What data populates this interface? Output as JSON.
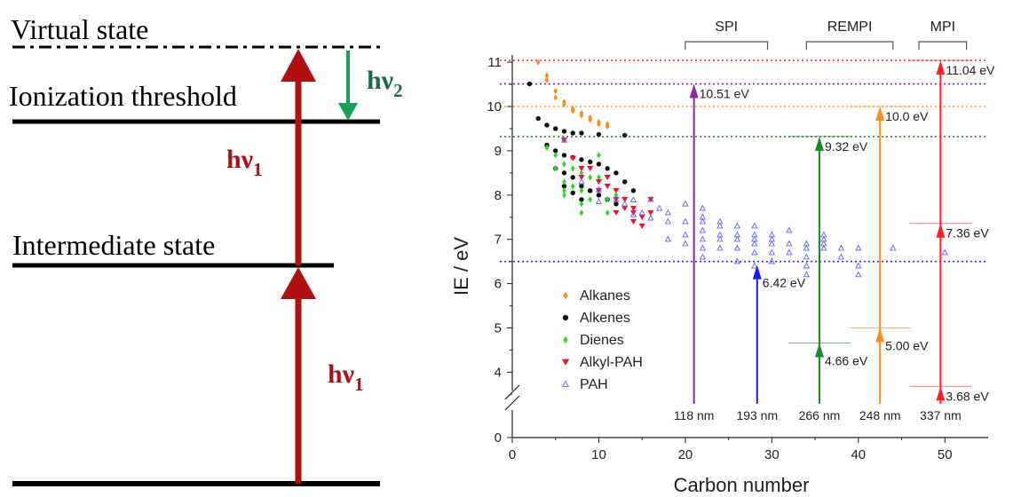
{
  "energy_diagram": {
    "virtual_state": "Virtual state",
    "ionization_threshold": "Ionization threshold",
    "intermediate_state": "Intermediate state",
    "hv1_upper": "hν",
    "hv1_upper_sub": "1",
    "hv1_lower": "hν",
    "hv1_lower_sub": "1",
    "hv2": "hν",
    "hv2_sub": "2",
    "colors": {
      "red": "#b01010",
      "green": "#1aa05a",
      "text_red": "#b01010",
      "text_green": "#1a6a50"
    }
  },
  "chart_data": {
    "type": "scatter",
    "xlabel": "Carbon number",
    "ylabel": "IE / eV",
    "xlim": [
      0,
      55
    ],
    "ylim_upper": [
      3.5,
      11.0
    ],
    "x_ticks": [
      0,
      10,
      20,
      30,
      40,
      50
    ],
    "y_ticks": [
      4,
      5,
      6,
      7,
      8,
      9,
      10,
      11
    ],
    "y_break_tick": 0,
    "method_brackets": [
      {
        "label": "SPI",
        "x_range": [
          20,
          29.5
        ]
      },
      {
        "label": "REMPI",
        "x_range": [
          34,
          44
        ]
      },
      {
        "label": "MPI",
        "x_range": [
          47,
          52.5
        ]
      }
    ],
    "reference_lines": [
      {
        "y": 11.04,
        "color": "#ff3030"
      },
      {
        "y": 10.51,
        "color": "#8a2aa0"
      },
      {
        "y": 10.0,
        "color": "#ff9a2a"
      },
      {
        "y": 9.32,
        "color": "#2a8a2a"
      },
      {
        "y": 6.5,
        "color": "#2a2aff"
      }
    ],
    "lasers": [
      {
        "wavelength": "118 nm",
        "x": 21,
        "color": "#8a2aa0",
        "steps": [
          10.51
        ],
        "labels": [
          "10.51 eV"
        ]
      },
      {
        "wavelength": "193 nm",
        "x": 28.3,
        "color": "#1a1aff",
        "steps": [
          6.42
        ],
        "labels": [
          "6.42 eV"
        ]
      },
      {
        "wavelength": "266 nm",
        "x": 35.5,
        "color": "#1a8a2a",
        "steps": [
          4.66,
          9.32
        ],
        "labels": [
          "4.66 eV",
          "9.32 eV"
        ]
      },
      {
        "wavelength": "248 nm",
        "x": 42.5,
        "color": "#ff8c1a",
        "steps": [
          5.0,
          10.0
        ],
        "labels": [
          "5.00 eV",
          "10.0 eV"
        ]
      },
      {
        "wavelength": "337 nm",
        "x": 49.5,
        "color": "#ff2020",
        "steps": [
          3.68,
          7.36,
          11.04
        ],
        "labels": [
          "3.68 eV",
          "7.36 eV",
          "11.04 eV"
        ]
      }
    ],
    "series": [
      {
        "name": "Alkanes",
        "marker": "diamond",
        "color": "#ff8c1a",
        "points": [
          [
            3,
            11
          ],
          [
            4,
            10.7
          ],
          [
            4,
            10.6
          ],
          [
            5,
            10.35
          ],
          [
            5,
            10.2
          ],
          [
            6,
            10.05
          ],
          [
            6,
            10.1
          ],
          [
            7,
            9.9
          ],
          [
            7,
            9.95
          ],
          [
            8,
            9.8
          ],
          [
            8,
            9.85
          ],
          [
            9,
            9.7
          ],
          [
            9,
            9.75
          ],
          [
            10,
            9.6
          ],
          [
            10,
            9.65
          ],
          [
            11,
            9.6
          ],
          [
            11,
            9.55
          ]
        ]
      },
      {
        "name": "Alkenes",
        "marker": "circle",
        "color": "#111111",
        "points": [
          [
            2,
            10.51
          ],
          [
            3,
            9.73
          ],
          [
            4,
            9.58
          ],
          [
            5,
            9.5
          ],
          [
            6,
            9.44
          ],
          [
            7,
            9.4
          ],
          [
            8,
            9.4
          ],
          [
            10,
            9.37
          ],
          [
            13,
            9.35
          ],
          [
            4,
            9.13
          ],
          [
            5,
            9.0
          ],
          [
            6,
            8.9
          ],
          [
            7,
            8.85
          ],
          [
            8,
            8.8
          ],
          [
            9,
            8.75
          ],
          [
            10,
            8.7
          ],
          [
            11,
            8.6
          ],
          [
            12,
            8.5
          ],
          [
            13,
            8.3
          ],
          [
            14,
            8.1
          ],
          [
            5,
            8.6
          ],
          [
            6,
            8.5
          ],
          [
            7,
            8.4
          ],
          [
            8,
            8.2
          ],
          [
            9,
            8.1
          ],
          [
            10,
            8.0
          ],
          [
            11,
            7.9
          ],
          [
            12,
            7.8
          ],
          [
            6,
            8.2
          ],
          [
            7,
            8.05
          ],
          [
            8,
            7.9
          ],
          [
            9,
            8.1
          ],
          [
            10,
            8.0
          ]
        ]
      },
      {
        "name": "Dienes",
        "marker": "diamond",
        "color": "#22dd22",
        "points": [
          [
            4,
            9.07
          ],
          [
            5,
            8.9
          ],
          [
            5,
            8.6
          ],
          [
            6,
            8.7
          ],
          [
            6,
            8.3
          ],
          [
            6,
            8.1
          ],
          [
            7,
            8.6
          ],
          [
            7,
            8.2
          ],
          [
            8,
            8.5
          ],
          [
            8,
            8.1
          ],
          [
            9,
            8.4
          ],
          [
            9,
            7.9
          ],
          [
            10,
            8.4
          ],
          [
            10,
            8.9
          ],
          [
            11,
            7.9
          ],
          [
            11,
            7.6
          ],
          [
            12,
            8.0
          ],
          [
            8,
            7.8
          ],
          [
            8,
            7.6
          ],
          [
            6,
            8.0
          ]
        ]
      },
      {
        "name": "Alkyl-PAH",
        "marker": "triangle-down",
        "color": "#ee1133",
        "points": [
          [
            6,
            9.24
          ],
          [
            7,
            8.83
          ],
          [
            8,
            8.6
          ],
          [
            8,
            8.4
          ],
          [
            9,
            8.6
          ],
          [
            10,
            8.3
          ],
          [
            10,
            8.1
          ],
          [
            11,
            8.2
          ],
          [
            12,
            7.6
          ],
          [
            12,
            7.9
          ],
          [
            13,
            7.7
          ],
          [
            14,
            7.6
          ],
          [
            14,
            7.4
          ],
          [
            15,
            7.5
          ],
          [
            15,
            7.3
          ],
          [
            16,
            7.9
          ],
          [
            16,
            7.6
          ],
          [
            11,
            8.4
          ],
          [
            12,
            8.1
          ],
          [
            13,
            7.9
          ],
          [
            14,
            7.7
          ]
        ]
      },
      {
        "name": "PAH",
        "marker": "triangle-open",
        "color": "#6060ff",
        "points": [
          [
            6,
            9.24
          ],
          [
            8,
            8.3
          ],
          [
            10,
            8.12
          ],
          [
            10,
            7.85
          ],
          [
            12,
            7.9
          ],
          [
            13,
            7.8
          ],
          [
            14,
            7.89
          ],
          [
            14,
            7.56
          ],
          [
            15,
            7.6
          ],
          [
            16,
            7.48
          ],
          [
            16,
            7.9
          ],
          [
            17,
            7.7
          ],
          [
            18,
            7.4
          ],
          [
            18,
            7.0
          ],
          [
            18,
            7.6
          ],
          [
            20,
            7.4
          ],
          [
            20,
            7.1
          ],
          [
            20,
            6.9
          ],
          [
            20,
            7.8
          ],
          [
            22,
            7.7
          ],
          [
            22,
            7.4
          ],
          [
            22,
            7.2
          ],
          [
            22,
            7.0
          ],
          [
            22,
            6.8
          ],
          [
            22,
            7.5
          ],
          [
            22,
            6.6
          ],
          [
            24,
            7.3
          ],
          [
            24,
            7.0
          ],
          [
            24,
            6.8
          ],
          [
            24,
            7.4
          ],
          [
            24,
            7.1
          ],
          [
            26,
            7.3
          ],
          [
            26,
            7.0
          ],
          [
            26,
            6.8
          ],
          [
            26,
            7.1
          ],
          [
            26,
            6.5
          ],
          [
            28,
            7.3
          ],
          [
            28,
            7.0
          ],
          [
            28,
            6.9
          ],
          [
            28,
            6.7
          ],
          [
            28,
            6.4
          ],
          [
            28,
            7.1
          ],
          [
            30,
            7.1
          ],
          [
            30,
            6.9
          ],
          [
            30,
            6.7
          ],
          [
            30,
            6.5
          ],
          [
            30,
            7.0
          ],
          [
            32,
            6.9
          ],
          [
            32,
            7.2
          ],
          [
            32,
            6.7
          ],
          [
            34,
            6.8
          ],
          [
            34,
            6.6
          ],
          [
            34,
            6.4
          ],
          [
            34,
            6.9
          ],
          [
            34,
            6.2
          ],
          [
            36,
            7.1
          ],
          [
            36,
            6.9
          ],
          [
            36,
            6.8
          ],
          [
            36,
            7.0
          ],
          [
            38,
            6.8
          ],
          [
            38,
            6.6
          ],
          [
            40,
            6.8
          ],
          [
            40,
            6.4
          ],
          [
            40,
            6.2
          ],
          [
            44,
            6.8
          ],
          [
            50,
            6.7
          ]
        ]
      }
    ]
  }
}
